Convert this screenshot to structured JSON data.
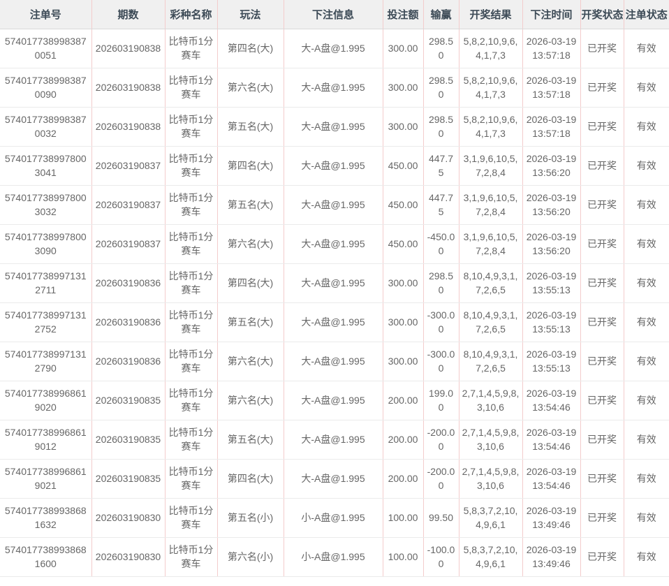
{
  "table": {
    "headers": [
      {
        "key": "order_id",
        "label": "注单号"
      },
      {
        "key": "period",
        "label": "期数"
      },
      {
        "key": "lottery_name",
        "label": "彩种名称"
      },
      {
        "key": "play",
        "label": "玩法"
      },
      {
        "key": "bet_info",
        "label": "下注信息"
      },
      {
        "key": "bet_amount",
        "label": "投注额"
      },
      {
        "key": "win_loss",
        "label": "输赢"
      },
      {
        "key": "draw_result",
        "label": "开奖结果"
      },
      {
        "key": "bet_time",
        "label": "下注时间"
      },
      {
        "key": "draw_status",
        "label": "开奖状态"
      },
      {
        "key": "order_status",
        "label": "注单状态"
      }
    ],
    "rows": [
      {
        "order_id": "5740177389983870051",
        "period": "202603190838",
        "lottery_name": "比特币1分赛车",
        "play": "第四名(大)",
        "bet_info": "大-A盘@1.995",
        "bet_amount": "300.00",
        "win_loss": "298.50",
        "draw_result": "5,8,2,10,9,6,4,1,7,3",
        "bet_time": "2026-03-19 13:57:18",
        "draw_status": "已开奖",
        "order_status": "有效"
      },
      {
        "order_id": "5740177389983870090",
        "period": "202603190838",
        "lottery_name": "比特币1分赛车",
        "play": "第六名(大)",
        "bet_info": "大-A盘@1.995",
        "bet_amount": "300.00",
        "win_loss": "298.50",
        "draw_result": "5,8,2,10,9,6,4,1,7,3",
        "bet_time": "2026-03-19 13:57:18",
        "draw_status": "已开奖",
        "order_status": "有效"
      },
      {
        "order_id": "5740177389983870032",
        "period": "202603190838",
        "lottery_name": "比特币1分赛车",
        "play": "第五名(大)",
        "bet_info": "大-A盘@1.995",
        "bet_amount": "300.00",
        "win_loss": "298.50",
        "draw_result": "5,8,2,10,9,6,4,1,7,3",
        "bet_time": "2026-03-19 13:57:18",
        "draw_status": "已开奖",
        "order_status": "有效"
      },
      {
        "order_id": "5740177389978003041",
        "period": "202603190837",
        "lottery_name": "比特币1分赛车",
        "play": "第四名(大)",
        "bet_info": "大-A盘@1.995",
        "bet_amount": "450.00",
        "win_loss": "447.75",
        "draw_result": "3,1,9,6,10,5,7,2,8,4",
        "bet_time": "2026-03-19 13:56:20",
        "draw_status": "已开奖",
        "order_status": "有效"
      },
      {
        "order_id": "5740177389978003032",
        "period": "202603190837",
        "lottery_name": "比特币1分赛车",
        "play": "第五名(大)",
        "bet_info": "大-A盘@1.995",
        "bet_amount": "450.00",
        "win_loss": "447.75",
        "draw_result": "3,1,9,6,10,5,7,2,8,4",
        "bet_time": "2026-03-19 13:56:20",
        "draw_status": "已开奖",
        "order_status": "有效"
      },
      {
        "order_id": "5740177389978003090",
        "period": "202603190837",
        "lottery_name": "比特币1分赛车",
        "play": "第六名(大)",
        "bet_info": "大-A盘@1.995",
        "bet_amount": "450.00",
        "win_loss": "-450.00",
        "draw_result": "3,1,9,6,10,5,7,2,8,4",
        "bet_time": "2026-03-19 13:56:20",
        "draw_status": "已开奖",
        "order_status": "有效"
      },
      {
        "order_id": "5740177389971312711",
        "period": "202603190836",
        "lottery_name": "比特币1分赛车",
        "play": "第四名(大)",
        "bet_info": "大-A盘@1.995",
        "bet_amount": "300.00",
        "win_loss": "298.50",
        "draw_result": "8,10,4,9,3,1,7,2,6,5",
        "bet_time": "2026-03-19 13:55:13",
        "draw_status": "已开奖",
        "order_status": "有效"
      },
      {
        "order_id": "5740177389971312752",
        "period": "202603190836",
        "lottery_name": "比特币1分赛车",
        "play": "第五名(大)",
        "bet_info": "大-A盘@1.995",
        "bet_amount": "300.00",
        "win_loss": "-300.00",
        "draw_result": "8,10,4,9,3,1,7,2,6,5",
        "bet_time": "2026-03-19 13:55:13",
        "draw_status": "已开奖",
        "order_status": "有效"
      },
      {
        "order_id": "5740177389971312790",
        "period": "202603190836",
        "lottery_name": "比特币1分赛车",
        "play": "第六名(大)",
        "bet_info": "大-A盘@1.995",
        "bet_amount": "300.00",
        "win_loss": "-300.00",
        "draw_result": "8,10,4,9,3,1,7,2,6,5",
        "bet_time": "2026-03-19 13:55:13",
        "draw_status": "已开奖",
        "order_status": "有效"
      },
      {
        "order_id": "5740177389968619020",
        "period": "202603190835",
        "lottery_name": "比特币1分赛车",
        "play": "第六名(大)",
        "bet_info": "大-A盘@1.995",
        "bet_amount": "200.00",
        "win_loss": "199.00",
        "draw_result": "2,7,1,4,5,9,8,3,10,6",
        "bet_time": "2026-03-19 13:54:46",
        "draw_status": "已开奖",
        "order_status": "有效"
      },
      {
        "order_id": "5740177389968619012",
        "period": "202603190835",
        "lottery_name": "比特币1分赛车",
        "play": "第五名(大)",
        "bet_info": "大-A盘@1.995",
        "bet_amount": "200.00",
        "win_loss": "-200.00",
        "draw_result": "2,7,1,4,5,9,8,3,10,6",
        "bet_time": "2026-03-19 13:54:46",
        "draw_status": "已开奖",
        "order_status": "有效"
      },
      {
        "order_id": "5740177389968619021",
        "period": "202603190835",
        "lottery_name": "比特币1分赛车",
        "play": "第四名(大)",
        "bet_info": "大-A盘@1.995",
        "bet_amount": "200.00",
        "win_loss": "-200.00",
        "draw_result": "2,7,1,4,5,9,8,3,10,6",
        "bet_time": "2026-03-19 13:54:46",
        "draw_status": "已开奖",
        "order_status": "有效"
      },
      {
        "order_id": "5740177389938681632",
        "period": "202603190830",
        "lottery_name": "比特币1分赛车",
        "play": "第五名(小)",
        "bet_info": "小-A盘@1.995",
        "bet_amount": "100.00",
        "win_loss": "99.50",
        "draw_result": "5,8,3,7,2,10,4,9,6,1",
        "bet_time": "2026-03-19 13:49:46",
        "draw_status": "已开奖",
        "order_status": "有效"
      },
      {
        "order_id": "5740177389938681600",
        "period": "202603190830",
        "lottery_name": "比特币1分赛车",
        "play": "第六名(小)",
        "bet_info": "小-A盘@1.995",
        "bet_amount": "100.00",
        "win_loss": "-100.00",
        "draw_result": "5,8,3,7,2,10,4,9,6,1",
        "bet_time": "2026-03-19 13:49:46",
        "draw_status": "已开奖",
        "order_status": "有效"
      }
    ]
  }
}
